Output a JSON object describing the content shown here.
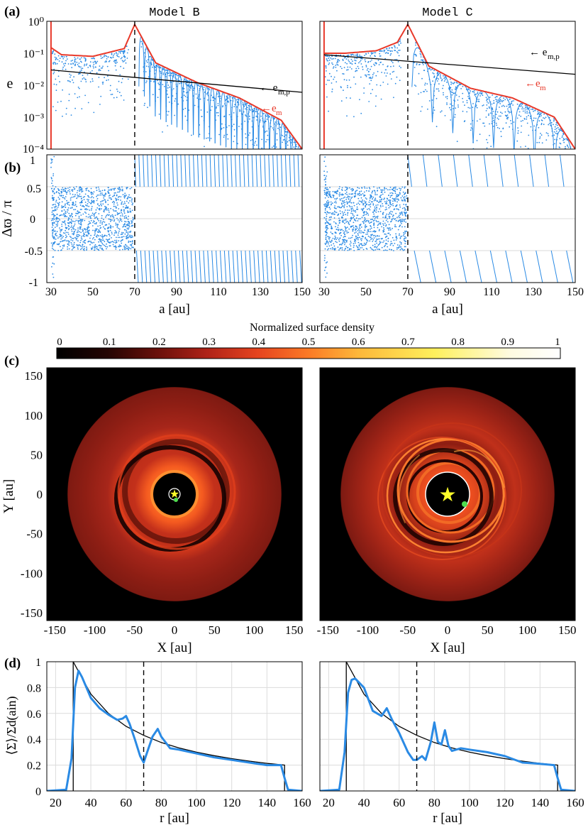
{
  "colors": {
    "scatter": "#2a8ae4",
    "envelope": "#e8392a",
    "forced": "#000000",
    "profile": "#2a8ae4",
    "colormap": [
      "#000000",
      "#240503",
      "#6a100b",
      "#b02318",
      "#e6441f",
      "#fb7a26",
      "#fdb83a",
      "#fef05c",
      "#fffbe0",
      "#ffffff"
    ]
  },
  "chart_data": [
    {
      "panel": "(a)",
      "type": "scatter",
      "models": [
        "Model B",
        "Model C"
      ],
      "xlim": [
        28,
        150
      ],
      "ylim": [
        0.0001,
        1
      ],
      "yscale": "log",
      "ylabel": "e",
      "ytick_labels": [
        "10⁰",
        "10⁻¹",
        "10⁻²",
        "10⁻³",
        "10⁻⁴"
      ],
      "annotations": [
        "← e",
        "m,p",
        "←e",
        "m"
      ],
      "planet_a": 70,
      "series": [
        {
          "name": "e_m,p",
          "model": "Model B",
          "x": [
            30,
            150
          ],
          "y": [
            0.03,
            0.006
          ]
        },
        {
          "name": "e_m,p",
          "model": "Model C",
          "x": [
            30,
            150
          ],
          "y": [
            0.09,
            0.022
          ]
        },
        {
          "name": "e_m",
          "model": "Model B",
          "x": [
            30,
            35,
            50,
            65,
            70,
            80,
            100,
            120,
            140,
            150
          ],
          "y": [
            0.15,
            0.09,
            0.08,
            0.14,
            0.8,
            0.05,
            0.012,
            0.004,
            0.0008,
            0.0001
          ]
        },
        {
          "name": "e_m",
          "model": "Model C",
          "x": [
            30,
            40,
            55,
            65,
            70,
            80,
            100,
            120,
            140,
            150
          ],
          "y": [
            0.1,
            0.1,
            0.12,
            0.22,
            0.8,
            0.04,
            0.008,
            0.004,
            0.001,
            0.0001
          ]
        }
      ]
    },
    {
      "panel": "(b)",
      "type": "scatter",
      "models": [
        "Model B",
        "Model C"
      ],
      "xlim": [
        28,
        150
      ],
      "ylim": [
        -1,
        1
      ],
      "xlabel": "a [au]",
      "ylabel": "Δϖ / π",
      "xtick_labels": [
        "30",
        "50",
        "70",
        "90",
        "110",
        "130",
        "150"
      ],
      "ytick_labels": [
        "1",
        "0.5",
        "0",
        "-0.5",
        "-1"
      ],
      "planet_a": 70,
      "series": [
        {
          "name": "inner, a < 70",
          "x": [
            30,
            70
          ],
          "y": [
            -0.5,
            0.5
          ]
        },
        {
          "name": "outer, a > 70",
          "x": [
            70,
            150
          ],
          "y": [
            -1,
            1
          ]
        }
      ]
    },
    {
      "panel": "(c)",
      "type": "heatmap",
      "colorbar_label": "Normalized surface density",
      "colorbar_ticks": [
        "0",
        "0.1",
        "0.2",
        "0.3",
        "0.4",
        "0.5",
        "0.6",
        "0.7",
        "0.8",
        "0.9",
        "1"
      ],
      "xlabel": "X [au]",
      "ylabel": "Y [au]",
      "xlim": [
        -160,
        160
      ],
      "ylim": [
        -160,
        160
      ],
      "xtick_labels": [
        "-150",
        "-100",
        "-50",
        "0",
        "50",
        "100",
        "150"
      ],
      "ytick_labels": [
        "150",
        "100",
        "50",
        "0",
        "-50",
        "-100",
        "-150"
      ]
    },
    {
      "panel": "(d)",
      "type": "line",
      "xlim": [
        15,
        160
      ],
      "ylim": [
        0,
        1
      ],
      "xlabel": "r [au]",
      "ylabel": "⟨Σ⟩/Σd(ain)",
      "xtick_labels": [
        "20",
        "40",
        "60",
        "80",
        "100",
        "120",
        "140",
        "160"
      ],
      "ytick_labels": [
        "1",
        "0.8",
        "0.6",
        "0.4",
        "0.2",
        "0"
      ],
      "series": [
        {
          "name": "Model B",
          "x": [
            15,
            26,
            29,
            31,
            33,
            35,
            40,
            45,
            50,
            55,
            58,
            60,
            62,
            65,
            68,
            70,
            72,
            75,
            78,
            80,
            85,
            90,
            100,
            110,
            120,
            130,
            140,
            148,
            150,
            152,
            160
          ],
          "y": [
            0.0,
            0.01,
            0.25,
            0.8,
            0.93,
            0.88,
            0.72,
            0.64,
            0.59,
            0.55,
            0.56,
            0.58,
            0.52,
            0.4,
            0.27,
            0.22,
            0.3,
            0.42,
            0.48,
            0.42,
            0.33,
            0.32,
            0.29,
            0.26,
            0.24,
            0.22,
            0.2,
            0.2,
            0.1,
            0.01,
            0.0
          ]
        },
        {
          "name": "Model C",
          "x": [
            15,
            26,
            29,
            31,
            33,
            35,
            40,
            45,
            50,
            53,
            56,
            60,
            65,
            68,
            70,
            73,
            75,
            78,
            80,
            82,
            84,
            86,
            88,
            90,
            95,
            100,
            110,
            120,
            130,
            140,
            148,
            150,
            152,
            160
          ],
          "y": [
            0.0,
            0.01,
            0.3,
            0.76,
            0.86,
            0.87,
            0.8,
            0.62,
            0.58,
            0.64,
            0.55,
            0.45,
            0.3,
            0.24,
            0.24,
            0.27,
            0.24,
            0.38,
            0.53,
            0.38,
            0.36,
            0.47,
            0.35,
            0.31,
            0.33,
            0.32,
            0.3,
            0.27,
            0.22,
            0.21,
            0.2,
            0.1,
            0.01,
            0.0
          ]
        },
        {
          "name": "Σd",
          "x": [
            30,
            40,
            50,
            60,
            70,
            80,
            90,
            100,
            110,
            120,
            130,
            140,
            150
          ],
          "y": [
            1.0,
            0.75,
            0.6,
            0.5,
            0.43,
            0.375,
            0.333,
            0.3,
            0.273,
            0.25,
            0.231,
            0.214,
            0.2
          ]
        }
      ]
    }
  ]
}
